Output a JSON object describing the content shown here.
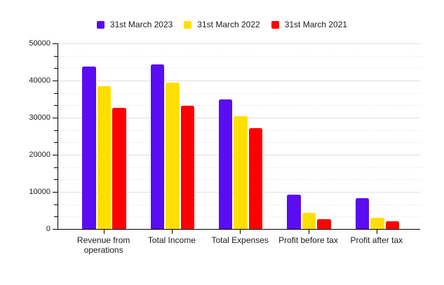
{
  "chart_data": {
    "type": "bar",
    "title": "",
    "categories": [
      "Revenue from operations",
      "Total Income",
      "Total Expenses",
      "Profit before tax",
      "Profit after tax"
    ],
    "series": [
      {
        "name": "31st March 2023",
        "color": "#5A0DF2",
        "values": [
          43700,
          44400,
          34900,
          9200,
          8300
        ]
      },
      {
        "name": "31st March 2022",
        "color": "#FFDF00",
        "values": [
          38400,
          39400,
          30400,
          4300,
          3100
        ]
      },
      {
        "name": "31st March 2021",
        "color": "#FF0000",
        "values": [
          32700,
          33200,
          27200,
          2600,
          2000
        ]
      }
    ],
    "xlabel": "",
    "ylabel": "",
    "ylim": [
      0,
      50000
    ],
    "y_major_step": 10000,
    "y_minor_divisions": 3,
    "y_tick_labels": [
      "0",
      "10000",
      "20000",
      "30000",
      "40000",
      "50000"
    ],
    "grid": true,
    "legend_position": "top",
    "background_color": "#ffffff",
    "axis_color": "#000000"
  }
}
